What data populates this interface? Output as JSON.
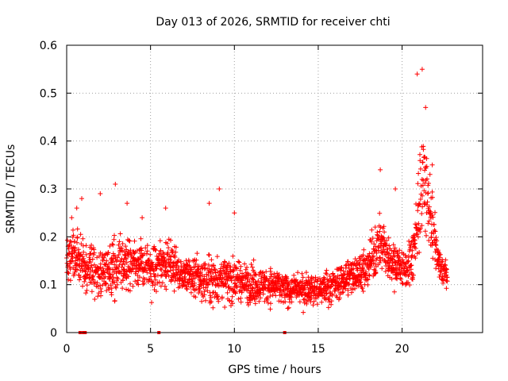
{
  "chart_data": {
    "type": "scatter",
    "title": "Day 013 of 2026, SRMTID for receiver chti",
    "xlabel": "GPS time / hours",
    "ylabel": "SRMTID / TECUs",
    "xlim": [
      0,
      24.8
    ],
    "ylim": [
      0,
      0.6
    ],
    "x_ticks": [
      0,
      5,
      10,
      15,
      20
    ],
    "x_tick_labels": [
      "0",
      "5",
      "10",
      "15",
      "20"
    ],
    "y_ticks": [
      0,
      0.1,
      0.2,
      0.3,
      0.4,
      0.5,
      0.6
    ],
    "y_tick_labels": [
      "0",
      "0.1",
      "0.2",
      "0.3",
      "0.4",
      "0.5",
      "0.6"
    ],
    "grid": true,
    "marker": "+",
    "color": "#ff0000",
    "data_range_hours": [
      0,
      22.7
    ],
    "sample_interval_hours": 0.0167,
    "envelope": {
      "x": [
        0,
        0.5,
        1,
        2,
        3,
        4,
        5,
        6,
        7,
        8,
        9,
        10,
        11,
        12,
        13,
        14,
        15,
        16,
        17,
        17.8,
        18.3,
        18.7,
        19.2,
        19.7,
        20.2,
        20.6,
        20.9,
        21.1,
        21.3,
        21.6,
        21.9,
        22.2,
        22.7
      ],
      "median": [
        0.15,
        0.17,
        0.14,
        0.13,
        0.14,
        0.15,
        0.13,
        0.15,
        0.12,
        0.11,
        0.11,
        0.11,
        0.1,
        0.1,
        0.09,
        0.09,
        0.09,
        0.1,
        0.12,
        0.13,
        0.16,
        0.19,
        0.15,
        0.14,
        0.13,
        0.15,
        0.22,
        0.3,
        0.33,
        0.27,
        0.2,
        0.14,
        0.12
      ],
      "spread": [
        0.05,
        0.05,
        0.05,
        0.05,
        0.05,
        0.05,
        0.045,
        0.045,
        0.04,
        0.045,
        0.045,
        0.04,
        0.035,
        0.035,
        0.03,
        0.03,
        0.03,
        0.035,
        0.035,
        0.04,
        0.05,
        0.06,
        0.045,
        0.04,
        0.04,
        0.05,
        0.1,
        0.11,
        0.1,
        0.08,
        0.05,
        0.035,
        0.03
      ]
    },
    "annotations": [
      {
        "text": "Day 013 of 2026, SRMTID for receiver chti",
        "role": "title"
      }
    ],
    "peaks": [
      {
        "x": 0.3,
        "y": 0.24
      },
      {
        "x": 0.6,
        "y": 0.26
      },
      {
        "x": 0.9,
        "y": 0.28
      },
      {
        "x": 2.0,
        "y": 0.29
      },
      {
        "x": 2.9,
        "y": 0.31
      },
      {
        "x": 3.6,
        "y": 0.27
      },
      {
        "x": 4.5,
        "y": 0.24
      },
      {
        "x": 5.9,
        "y": 0.26
      },
      {
        "x": 8.5,
        "y": 0.27
      },
      {
        "x": 9.1,
        "y": 0.3
      },
      {
        "x": 10.0,
        "y": 0.25
      },
      {
        "x": 18.7,
        "y": 0.34
      },
      {
        "x": 19.6,
        "y": 0.3
      },
      {
        "x": 20.9,
        "y": 0.54
      },
      {
        "x": 21.2,
        "y": 0.55
      },
      {
        "x": 21.4,
        "y": 0.47
      },
      {
        "x": 21.8,
        "y": 0.35
      }
    ],
    "gaps_at_zero": [
      {
        "x": 0.8,
        "y": 0
      },
      {
        "x": 1.0,
        "y": 0
      },
      {
        "x": 1.1,
        "y": 0
      },
      {
        "x": 5.5,
        "y": 0
      },
      {
        "x": 13.0,
        "y": 0
      }
    ]
  }
}
